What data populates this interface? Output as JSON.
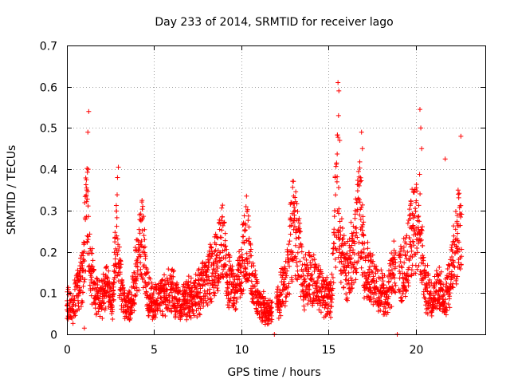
{
  "chart_data": {
    "type": "scatter",
    "title": "Day 233 of 2014, SRMTID for receiver lago",
    "xlabel": "GPS time / hours",
    "ylabel": "SRMTID / TECUs",
    "xlim": [
      0,
      24
    ],
    "ylim": [
      0,
      0.7
    ],
    "xticks": [
      0,
      5,
      10,
      15,
      20
    ],
    "xtick_labels": [
      "0",
      "5",
      "10",
      "15",
      "20"
    ],
    "yticks": [
      0,
      0.1,
      0.2,
      0.3,
      0.4,
      0.5,
      0.6,
      0.7
    ],
    "ytick_labels": [
      "0",
      "0.1",
      "0.2",
      "0.3",
      "0.4",
      "0.5",
      "0.6",
      "0.7"
    ],
    "grid": true,
    "marker": "+",
    "color": "#ff0000",
    "series": [
      {
        "name": "SRMTID",
        "profile": [
          [
            0.0,
            0.09
          ],
          [
            0.3,
            0.06
          ],
          [
            0.6,
            0.11
          ],
          [
            0.9,
            0.14
          ],
          [
            1.15,
            0.3
          ],
          [
            1.3,
            0.18
          ],
          [
            1.6,
            0.1
          ],
          [
            2.0,
            0.09
          ],
          [
            2.3,
            0.12
          ],
          [
            2.6,
            0.07
          ],
          [
            2.85,
            0.25
          ],
          [
            3.0,
            0.14
          ],
          [
            3.3,
            0.07
          ],
          [
            3.7,
            0.08
          ],
          [
            4.0,
            0.16
          ],
          [
            4.3,
            0.24
          ],
          [
            4.6,
            0.1
          ],
          [
            5.0,
            0.08
          ],
          [
            5.5,
            0.09
          ],
          [
            6.0,
            0.11
          ],
          [
            6.5,
            0.07
          ],
          [
            7.0,
            0.09
          ],
          [
            7.5,
            0.1
          ],
          [
            8.0,
            0.13
          ],
          [
            8.5,
            0.16
          ],
          [
            8.9,
            0.22
          ],
          [
            9.2,
            0.14
          ],
          [
            9.6,
            0.1
          ],
          [
            10.0,
            0.16
          ],
          [
            10.3,
            0.24
          ],
          [
            10.6,
            0.13
          ],
          [
            11.0,
            0.08
          ],
          [
            11.5,
            0.05
          ],
          [
            11.8,
            0.06
          ],
          [
            12.2,
            0.09
          ],
          [
            12.6,
            0.14
          ],
          [
            13.0,
            0.27
          ],
          [
            13.3,
            0.2
          ],
          [
            13.6,
            0.12
          ],
          [
            14.0,
            0.14
          ],
          [
            14.4,
            0.12
          ],
          [
            14.8,
            0.09
          ],
          [
            15.2,
            0.1
          ],
          [
            15.5,
            0.38
          ],
          [
            15.7,
            0.2
          ],
          [
            16.0,
            0.15
          ],
          [
            16.4,
            0.19
          ],
          [
            16.8,
            0.3
          ],
          [
            17.1,
            0.16
          ],
          [
            17.5,
            0.13
          ],
          [
            17.9,
            0.11
          ],
          [
            18.4,
            0.09
          ],
          [
            18.7,
            0.15
          ],
          [
            19.0,
            0.14
          ],
          [
            19.4,
            0.16
          ],
          [
            19.8,
            0.24
          ],
          [
            20.2,
            0.28
          ],
          [
            20.5,
            0.12
          ],
          [
            20.9,
            0.09
          ],
          [
            21.3,
            0.11
          ],
          [
            21.7,
            0.09
          ],
          [
            22.1,
            0.16
          ],
          [
            22.5,
            0.25
          ],
          [
            22.65,
            0.21
          ]
        ],
        "spikes": [
          [
            1.25,
            0.54
          ],
          [
            1.2,
            0.49
          ],
          [
            1.22,
            0.4
          ],
          [
            2.95,
            0.405
          ],
          [
            2.9,
            0.38
          ],
          [
            4.35,
            0.31
          ],
          [
            10.3,
            0.335
          ],
          [
            13.0,
            0.335
          ],
          [
            15.55,
            0.61
          ],
          [
            15.6,
            0.59
          ],
          [
            15.58,
            0.53
          ],
          [
            15.65,
            0.47
          ],
          [
            16.9,
            0.49
          ],
          [
            16.95,
            0.45
          ],
          [
            20.25,
            0.545
          ],
          [
            20.3,
            0.5
          ],
          [
            20.35,
            0.45
          ],
          [
            21.7,
            0.425
          ],
          [
            22.6,
            0.48
          ],
          [
            1.0,
            0.015
          ],
          [
            11.9,
            0.0
          ],
          [
            18.95,
            0.0
          ]
        ]
      }
    ]
  }
}
